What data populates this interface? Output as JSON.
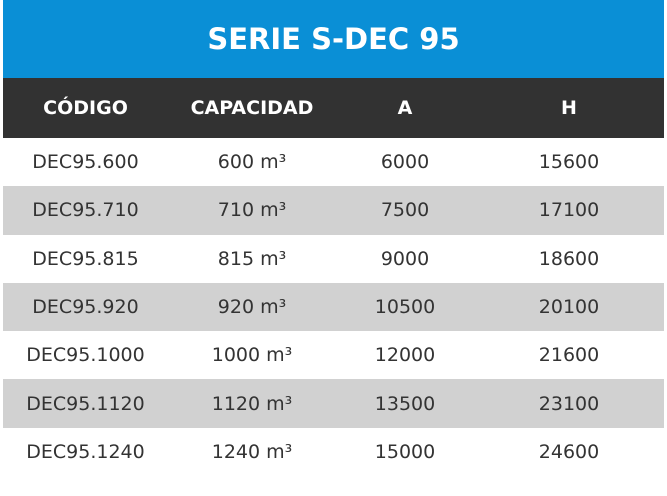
{
  "header": {
    "title": "SERIE S-DEC 95"
  },
  "table": {
    "columns": [
      "CÓDIGO",
      "CAPACIDAD",
      "A",
      "H"
    ],
    "rows": [
      [
        "DEC95.600",
        "600 m³",
        6000,
        15600
      ],
      [
        "DEC95.710",
        "710 m³",
        7500,
        17100
      ],
      [
        "DEC95.815",
        "815 m³",
        9000,
        18600
      ],
      [
        "DEC95.920",
        "920 m³",
        10500,
        20100
      ],
      [
        "DEC95.1000",
        "1000 m³",
        12000,
        21600
      ],
      [
        "DEC95.1120",
        "1120 m³",
        13500,
        23100
      ],
      [
        "DEC95.1240",
        "1240 m³",
        15000,
        24600
      ]
    ]
  }
}
